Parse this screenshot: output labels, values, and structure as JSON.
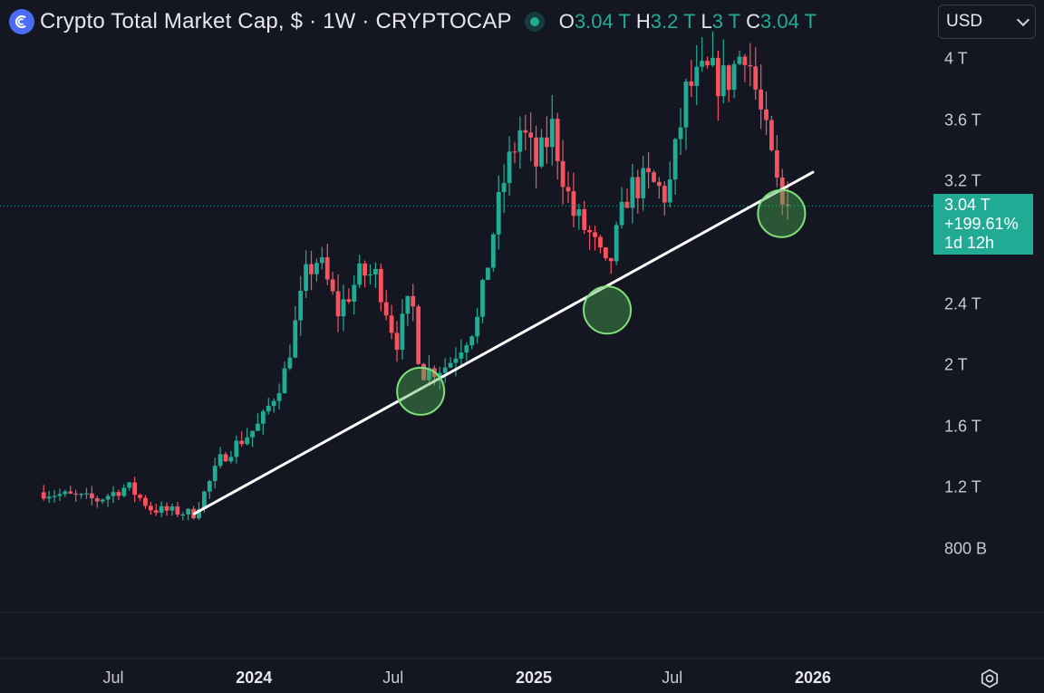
{
  "header": {
    "title": "Crypto Total Market Cap, $ · 1W · CRYPTOCAP",
    "logo_icon": "cryptocap-logo-icon",
    "live_icon": "live-dot-icon",
    "ohlc": [
      {
        "key": "O",
        "value": "3.04 T"
      },
      {
        "key": "H",
        "value": "3.2 T"
      },
      {
        "key": "L",
        "value": "3 T"
      },
      {
        "key": "C",
        "value": "3.04 T"
      }
    ]
  },
  "currency_select": {
    "value": "USD",
    "icon": "chevron-down-icon"
  },
  "price_badge": {
    "price": "3.04 T",
    "change": "+199.61%",
    "countdown": "1d 12h"
  },
  "settings_icon": "settings-gear-icon",
  "colors": {
    "background": "#141721",
    "up": "#22ab94",
    "down": "#f7525f",
    "trendline": "#ffffff",
    "highlight": "#4caf50"
  },
  "chart_data": {
    "type": "candlestick",
    "title": "Crypto Total Market Cap",
    "interval": "1W",
    "yaxis": {
      "ticks": [
        0.8,
        1.2,
        1.6,
        2.0,
        2.4,
        3.2,
        3.6,
        4.0
      ],
      "tick_labels": [
        "800 B",
        "1.2 T",
        "1.6 T",
        "2 T",
        "2.4 T",
        "3.2 T",
        "3.6 T",
        "4 T"
      ],
      "ylim": [
        0.48,
        4.34
      ],
      "unit": "USD"
    },
    "xaxis": {
      "tick_labels": [
        "Jul",
        "2024",
        "Jul",
        "2025",
        "Jul",
        "2026"
      ],
      "tick_dates": [
        "2023-07-01",
        "2024-01-01",
        "2024-07-01",
        "2025-01-01",
        "2025-07-01",
        "2026-01-01"
      ]
    },
    "last_price": 3.04,
    "last_price_line": "dotted",
    "trendline": {
      "start": {
        "date": "2023-10-15",
        "value": 1.03
      },
      "end": {
        "date": "2026-01-01",
        "value": 3.26
      }
    },
    "highlighted_touches": [
      {
        "date": "2024-08-06",
        "value": 1.83
      },
      {
        "date": "2025-04-07",
        "value": 2.36
      },
      {
        "date": "2025-11-21",
        "value": 2.99
      }
    ],
    "weekly_closes_anchors": [
      {
        "date": "2023-04-01",
        "value": 1.17
      },
      {
        "date": "2023-06-10",
        "value": 1.12
      },
      {
        "date": "2023-07-20",
        "value": 1.21
      },
      {
        "date": "2023-08-20",
        "value": 1.06
      },
      {
        "date": "2023-10-15",
        "value": 1.03
      },
      {
        "date": "2023-11-20",
        "value": 1.4
      },
      {
        "date": "2024-01-10",
        "value": 1.62
      },
      {
        "date": "2024-02-10",
        "value": 1.95
      },
      {
        "date": "2024-03-10",
        "value": 2.6
      },
      {
        "date": "2024-03-25",
        "value": 2.7
      },
      {
        "date": "2024-04-20",
        "value": 2.35
      },
      {
        "date": "2024-05-20",
        "value": 2.6
      },
      {
        "date": "2024-06-10",
        "value": 2.58
      },
      {
        "date": "2024-07-05",
        "value": 2.15
      },
      {
        "date": "2024-07-25",
        "value": 2.45
      },
      {
        "date": "2024-08-06",
        "value": 1.95
      },
      {
        "date": "2024-09-10",
        "value": 2.0
      },
      {
        "date": "2024-10-20",
        "value": 2.3
      },
      {
        "date": "2024-11-10",
        "value": 2.9
      },
      {
        "date": "2024-11-25",
        "value": 3.25
      },
      {
        "date": "2024-12-15",
        "value": 3.55
      },
      {
        "date": "2025-01-05",
        "value": 3.3
      },
      {
        "date": "2025-01-25",
        "value": 3.55
      },
      {
        "date": "2025-02-20",
        "value": 3.0
      },
      {
        "date": "2025-03-15",
        "value": 2.85
      },
      {
        "date": "2025-04-07",
        "value": 2.6
      },
      {
        "date": "2025-05-05",
        "value": 3.15
      },
      {
        "date": "2025-06-01",
        "value": 3.2
      },
      {
        "date": "2025-06-25",
        "value": 3.1
      },
      {
        "date": "2025-07-20",
        "value": 3.8
      },
      {
        "date": "2025-08-15",
        "value": 3.9
      },
      {
        "date": "2025-09-10",
        "value": 3.85
      },
      {
        "date": "2025-10-05",
        "value": 4.1
      },
      {
        "date": "2025-10-20",
        "value": 3.75
      },
      {
        "date": "2025-11-05",
        "value": 3.4
      },
      {
        "date": "2025-11-21",
        "value": 3.04
      },
      {
        "date": "2025-12-01",
        "value": 3.04
      }
    ]
  }
}
